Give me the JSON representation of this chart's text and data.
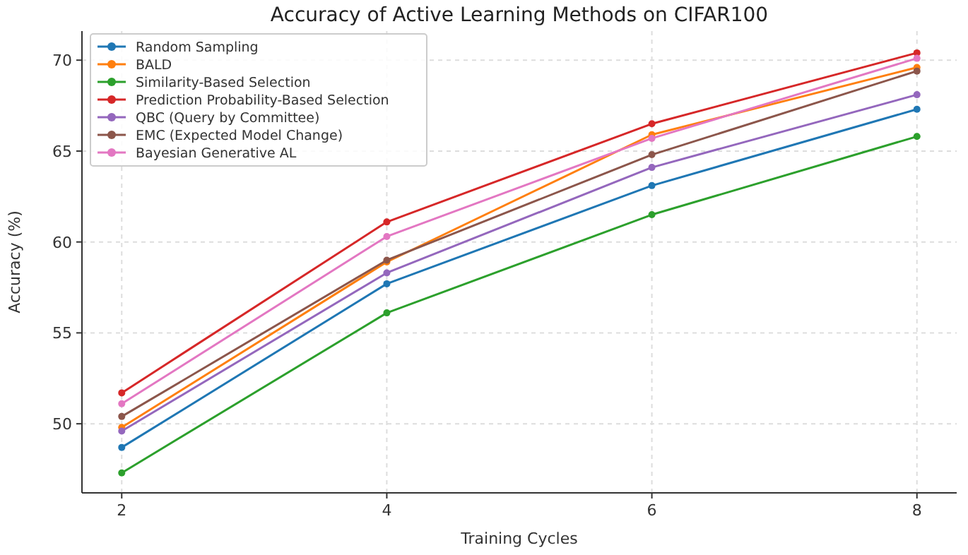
{
  "chart_data": {
    "type": "line",
    "title": "Accuracy of Active Learning Methods on CIFAR100",
    "xlabel": "Training Cycles",
    "ylabel": "Accuracy (%)",
    "x": [
      2,
      4,
      6,
      8
    ],
    "xlim": [
      1.7,
      8.3
    ],
    "xticks": [
      2,
      4,
      6,
      8
    ],
    "ylim": [
      46.2,
      71.6
    ],
    "yticks": [
      50,
      55,
      60,
      65,
      70
    ],
    "grid": true,
    "legend": "top left",
    "marker": "circle",
    "line_style": "solid",
    "series": [
      {
        "name": "Random Sampling",
        "color": "#1f77b4",
        "values": [
          48.7,
          57.7,
          63.1,
          67.3
        ]
      },
      {
        "name": "BALD",
        "color": "#ff7f0e",
        "values": [
          49.8,
          58.9,
          65.9,
          69.6
        ]
      },
      {
        "name": "Similarity-Based Selection",
        "color": "#2ca02c",
        "values": [
          47.3,
          56.1,
          61.5,
          65.8
        ]
      },
      {
        "name": "Prediction Probability-Based Selection",
        "color": "#d62728",
        "values": [
          51.7,
          61.1,
          66.5,
          70.4
        ]
      },
      {
        "name": "QBC (Query by Committee)",
        "color": "#9467bd",
        "values": [
          49.6,
          58.3,
          64.1,
          68.1
        ]
      },
      {
        "name": "EMC (Expected Model Change)",
        "color": "#8c564b",
        "values": [
          50.4,
          59.0,
          64.8,
          69.4
        ]
      },
      {
        "name": "Bayesian Generative AL",
        "color": "#e377c2",
        "values": [
          51.1,
          60.3,
          65.7,
          70.1
        ]
      }
    ]
  }
}
